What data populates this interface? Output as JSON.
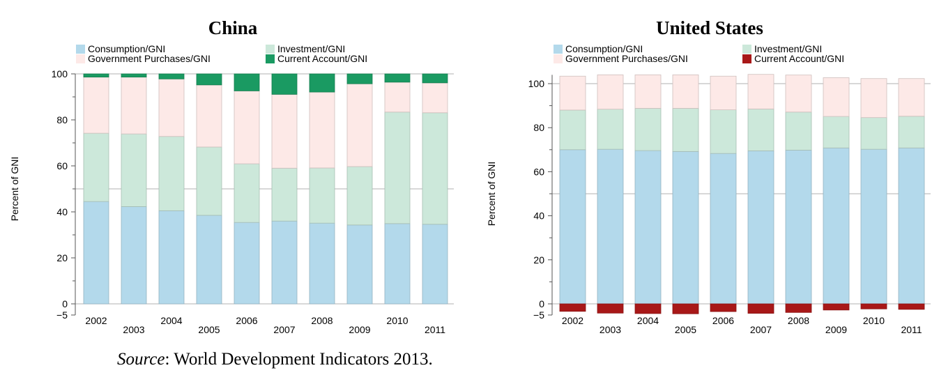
{
  "chart_data": [
    {
      "type": "bar",
      "stacked": true,
      "title": "China",
      "ylabel": "Percent of GNI",
      "xlabel": "",
      "ylim": [
        -5,
        100
      ],
      "yticks": [
        0,
        20,
        40,
        60,
        80,
        100
      ],
      "ybottom_label": "−5",
      "grid": "horizontal",
      "legend_position": "top",
      "categories": [
        "2002",
        "2003",
        "2004",
        "2005",
        "2006",
        "2007",
        "2008",
        "2009",
        "2010",
        "2011"
      ],
      "series": [
        {
          "name": "Consumption/GNI",
          "color": "#b3d9eb",
          "values": [
            44.5,
            42.3,
            40.5,
            38.5,
            35.4,
            36,
            35.1,
            34.3,
            34.9,
            34.6
          ]
        },
        {
          "name": "Investment/GNI",
          "color": "#cce8da",
          "values": [
            29.7,
            31.6,
            32.3,
            29.7,
            25.5,
            23,
            24,
            25.4,
            48.5,
            48.5
          ]
        },
        {
          "name": "Government Purchases/GNI",
          "color": "#fde9e7",
          "values": [
            24.4,
            24.7,
            25,
            27,
            31.7,
            32.1,
            33,
            36,
            13,
            13
          ]
        },
        {
          "name": "Current Account/GNI",
          "color": "#1a9a62",
          "values": [
            1.4,
            1.4,
            2.2,
            4.8,
            7.4,
            8.9,
            7.9,
            4.3,
            3.6,
            3.9
          ]
        }
      ]
    },
    {
      "type": "bar",
      "stacked": true,
      "title": "United States",
      "ylabel": "Percent of GNI",
      "xlabel": "",
      "ylim": [
        -5,
        104
      ],
      "yticks": [
        0,
        20,
        40,
        60,
        80,
        100
      ],
      "ybottom_label": "−5",
      "grid": "horizontal",
      "legend_position": "top",
      "categories": [
        "2002",
        "2003",
        "2004",
        "2005",
        "2006",
        "2007",
        "2008",
        "2009",
        "2010",
        "2011"
      ],
      "series": [
        {
          "name": "Consumption/GNI",
          "color": "#b3d9eb",
          "values": [
            70,
            70.2,
            69.6,
            69.2,
            68.3,
            69.5,
            69.8,
            70.8,
            70.2,
            70.8
          ]
        },
        {
          "name": "Investment/GNI",
          "color": "#cce8da",
          "values": [
            18,
            18.2,
            19.2,
            19.6,
            19.8,
            19,
            17.3,
            14.3,
            14.4,
            14.4
          ]
        },
        {
          "name": "Government Purchases/GNI",
          "color": "#fde9e7",
          "values": [
            15.4,
            15.6,
            15.2,
            15.2,
            15.3,
            15.7,
            16.8,
            17.6,
            17.7,
            17.1
          ]
        },
        {
          "name": "Current Account/GNI",
          "color": "#a81818",
          "values": [
            -3.4,
            -4.2,
            -4.4,
            -4.5,
            -3.5,
            -4.3,
            -3.9,
            -2.8,
            -2.3,
            -2.5
          ]
        }
      ]
    }
  ],
  "source": {
    "label": "Source",
    "text": ": World Development Indicators 2013."
  }
}
